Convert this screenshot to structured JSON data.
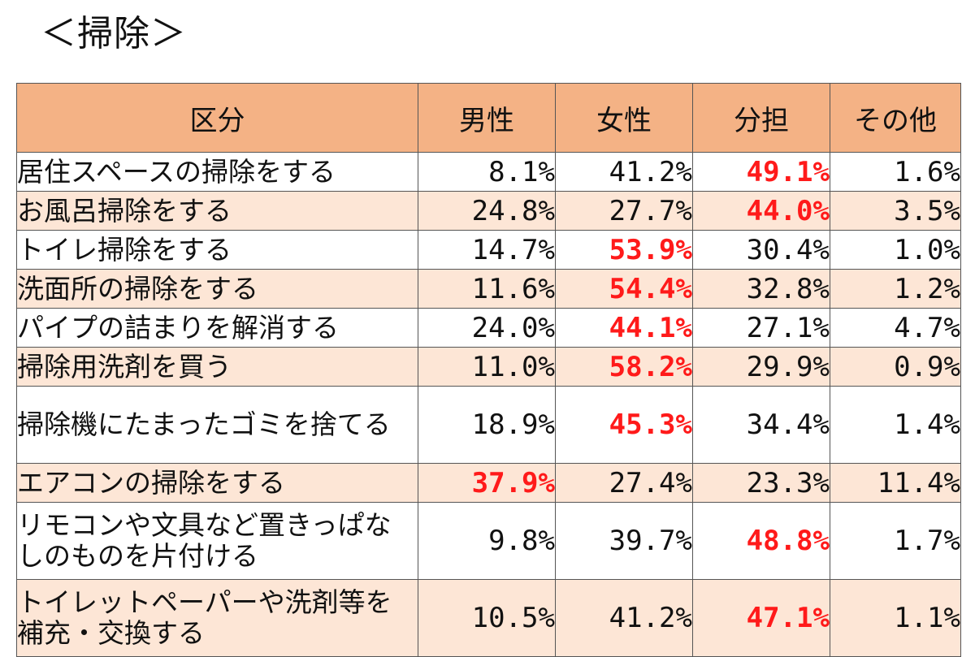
{
  "title": "＜掃除＞",
  "chart_data": {
    "type": "table",
    "title": "＜掃除＞",
    "columns": [
      "区分",
      "男性",
      "女性",
      "分担",
      "その他"
    ],
    "rows": [
      {
        "label": "居住スペースの掃除をする",
        "values": [
          "8.1%",
          "41.2%",
          "49.1%",
          "1.6%"
        ],
        "highlight": 2
      },
      {
        "label": "お風呂掃除をする",
        "values": [
          "24.8%",
          "27.7%",
          "44.0%",
          "3.5%"
        ],
        "highlight": 2
      },
      {
        "label": "トイレ掃除をする",
        "values": [
          "14.7%",
          "53.9%",
          "30.4%",
          "1.0%"
        ],
        "highlight": 1
      },
      {
        "label": "洗面所の掃除をする",
        "values": [
          "11.6%",
          "54.4%",
          "32.8%",
          "1.2%"
        ],
        "highlight": 1
      },
      {
        "label": "パイプの詰まりを解消する",
        "values": [
          "24.0%",
          "44.1%",
          "27.1%",
          "4.7%"
        ],
        "highlight": 1
      },
      {
        "label": "掃除用洗剤を買う",
        "values": [
          "11.0%",
          "58.2%",
          "29.9%",
          "0.9%"
        ],
        "highlight": 1
      },
      {
        "label": "掃除機にたまったゴミを捨てる",
        "values": [
          "18.9%",
          "45.3%",
          "34.4%",
          "1.4%"
        ],
        "highlight": 1
      },
      {
        "label": "エアコンの掃除をする",
        "values": [
          "37.9%",
          "27.4%",
          "23.3%",
          "11.4%"
        ],
        "highlight": 0
      },
      {
        "label": "リモコンや文具など置きっぱなしのものを片付ける",
        "values": [
          "9.8%",
          "39.7%",
          "48.8%",
          "1.7%"
        ],
        "highlight": 2
      },
      {
        "label": "トイレットペーパーや洗剤等を補充・交換する",
        "values": [
          "10.5%",
          "41.2%",
          "47.1%",
          "1.1%"
        ],
        "highlight": 2
      }
    ],
    "highlight_color": "#ff1a1a",
    "header_color": "#f4b285",
    "stripe_color": "#fde6d6"
  }
}
